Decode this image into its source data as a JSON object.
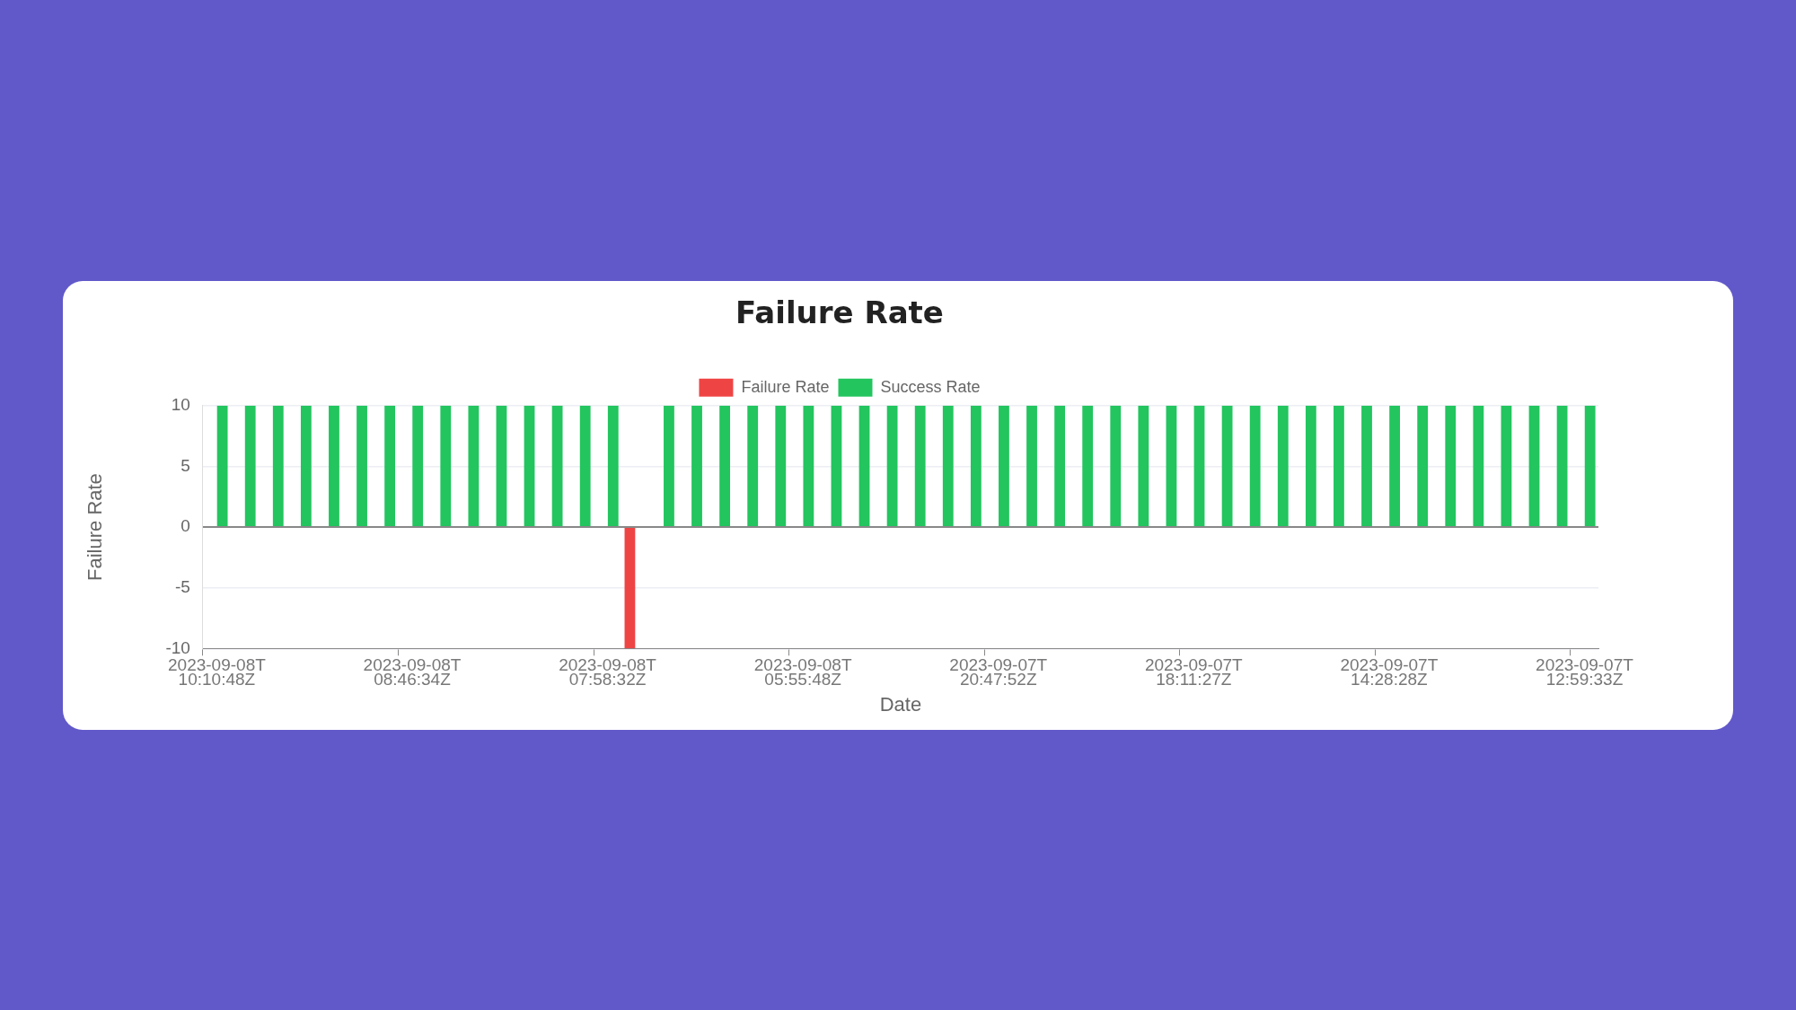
{
  "chart_data": {
    "type": "bar",
    "title": "Failure Rate",
    "xlabel": "Date",
    "ylabel": "Failure Rate",
    "categories": [
      "2023-09-08T10:10:48Z",
      null,
      null,
      null,
      null,
      null,
      null,
      "2023-09-08T08:46:34Z",
      null,
      null,
      null,
      null,
      null,
      null,
      "2023-09-08T07:58:32Z",
      null,
      null,
      null,
      null,
      null,
      null,
      "2023-09-08T05:55:48Z",
      null,
      null,
      null,
      null,
      null,
      null,
      "2023-09-07T20:47:52Z",
      null,
      null,
      null,
      null,
      null,
      null,
      "2023-09-07T18:11:27Z",
      null,
      null,
      null,
      null,
      null,
      null,
      "2023-09-07T14:28:28Z",
      null,
      null,
      null,
      null,
      null,
      null,
      "2023-09-07T12:59:33Z"
    ],
    "series": [
      {
        "name": "Failure Rate",
        "color": "#ef4444",
        "values": [
          0,
          0,
          0,
          0,
          0,
          0,
          0,
          0,
          0,
          0,
          0,
          0,
          0,
          0,
          0,
          -10,
          0,
          0,
          0,
          0,
          0,
          0,
          0,
          0,
          0,
          0,
          0,
          0,
          0,
          0,
          0,
          0,
          0,
          0,
          0,
          0,
          0,
          0,
          0,
          0,
          0,
          0,
          0,
          0,
          0,
          0,
          0,
          0,
          0,
          0
        ]
      },
      {
        "name": "Success Rate",
        "color": "#22c55e",
        "values": [
          10,
          10,
          10,
          10,
          10,
          10,
          10,
          10,
          10,
          10,
          10,
          10,
          10,
          10,
          10,
          0,
          10,
          10,
          10,
          10,
          10,
          10,
          10,
          10,
          10,
          10,
          10,
          10,
          10,
          10,
          10,
          10,
          10,
          10,
          10,
          10,
          10,
          10,
          10,
          10,
          10,
          10,
          10,
          10,
          10,
          10,
          10,
          10,
          10,
          10
        ]
      }
    ],
    "ylim": [
      -10,
      10
    ],
    "yticks": [
      -10,
      -5,
      0,
      5,
      10
    ],
    "grid": "y",
    "legend": "top"
  }
}
